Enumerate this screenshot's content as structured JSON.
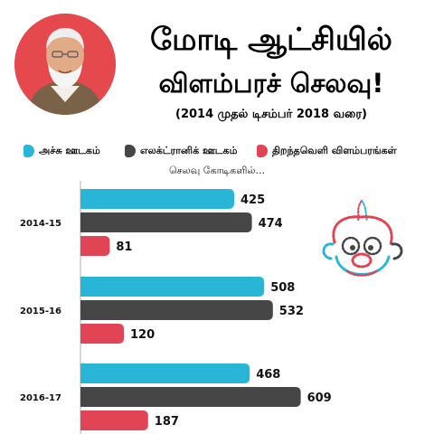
{
  "header": {
    "title_line1": "மோடி ஆட்சியில்",
    "title_line2": "விளம்பரச் செலவு!",
    "period": "(2014 முதல் டிசம்பர் 2018 வரை)"
  },
  "unit_note": "செலவு கோடிகளில்...",
  "colors": {
    "print": "#29b6d6",
    "electronic": "#464646",
    "outdoor": "#e04455",
    "portrait_bg": "#e5484d"
  },
  "chart_data": {
    "type": "bar",
    "orientation": "horizontal",
    "title": "",
    "xlabel": "",
    "ylabel": "",
    "categories": [
      "2014-15",
      "2015-16",
      "2016-17"
    ],
    "series": [
      {
        "name": "அச்சு ஊடகம்",
        "color": "#29b6d6",
        "values": [
          425,
          508,
          468
        ]
      },
      {
        "name": "எலக்ட்ரானிக் ஊடகம்",
        "color": "#464646",
        "values": [
          474,
          532,
          609
        ]
      },
      {
        "name": "திறந்தவெளி விளம்பரங்கள்",
        "color": "#e04455",
        "values": [
          81,
          120,
          187
        ]
      }
    ],
    "legend_position": "top",
    "grid": false
  }
}
